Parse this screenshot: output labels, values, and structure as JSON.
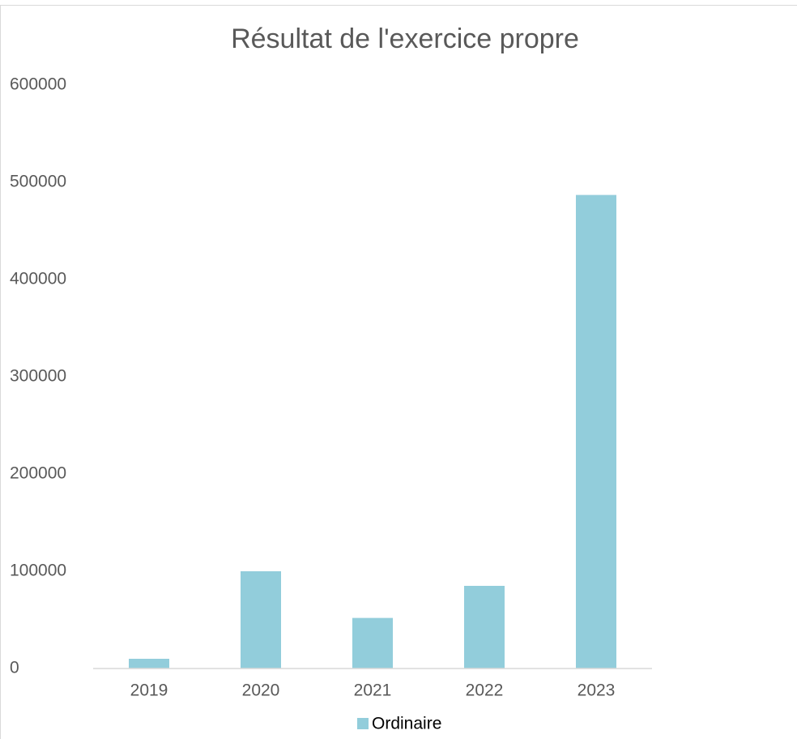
{
  "chart_data": {
    "type": "bar",
    "title": "Résultat de l'exercice propre",
    "categories": [
      "2019",
      "2020",
      "2021",
      "2022",
      "2023"
    ],
    "series": [
      {
        "name": "Ordinaire",
        "color": "#92cddb",
        "values": [
          10000,
          100000,
          52000,
          85000,
          487000
        ]
      }
    ],
    "ylim": [
      0,
      600000
    ],
    "yticks": [
      0,
      100000,
      200000,
      300000,
      400000,
      500000,
      600000
    ],
    "grid": false,
    "legend": "bottom"
  }
}
